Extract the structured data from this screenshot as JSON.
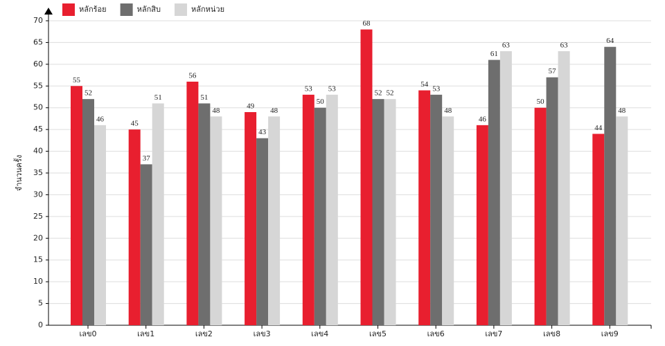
{
  "chart_data": {
    "type": "bar",
    "y_label": "จำนวนครั้ง",
    "categories": [
      "เลข0",
      "เลข1",
      "เลข2",
      "เลข3",
      "เลข4",
      "เลข5",
      "เลข6",
      "เลข7",
      "เลข8",
      "เลข9"
    ],
    "series": [
      {
        "name": "หลักร้อย",
        "color": "#e81f2f",
        "values": [
          55,
          45,
          56,
          49,
          53,
          68,
          54,
          46,
          50,
          44
        ]
      },
      {
        "name": "หลักสิบ",
        "color": "#6e6e6e",
        "values": [
          52,
          37,
          51,
          43,
          50,
          52,
          53,
          61,
          57,
          64
        ]
      },
      {
        "name": "หลักหน่วย",
        "color": "#d6d6d6",
        "values": [
          46,
          51,
          48,
          48,
          53,
          52,
          48,
          63,
          63,
          48
        ]
      }
    ],
    "ylim": [
      0,
      70
    ],
    "yticks": [
      0,
      5,
      10,
      15,
      20,
      25,
      30,
      35,
      40,
      45,
      50,
      55,
      60,
      65,
      70
    ],
    "grid": true,
    "data_labels": true
  }
}
